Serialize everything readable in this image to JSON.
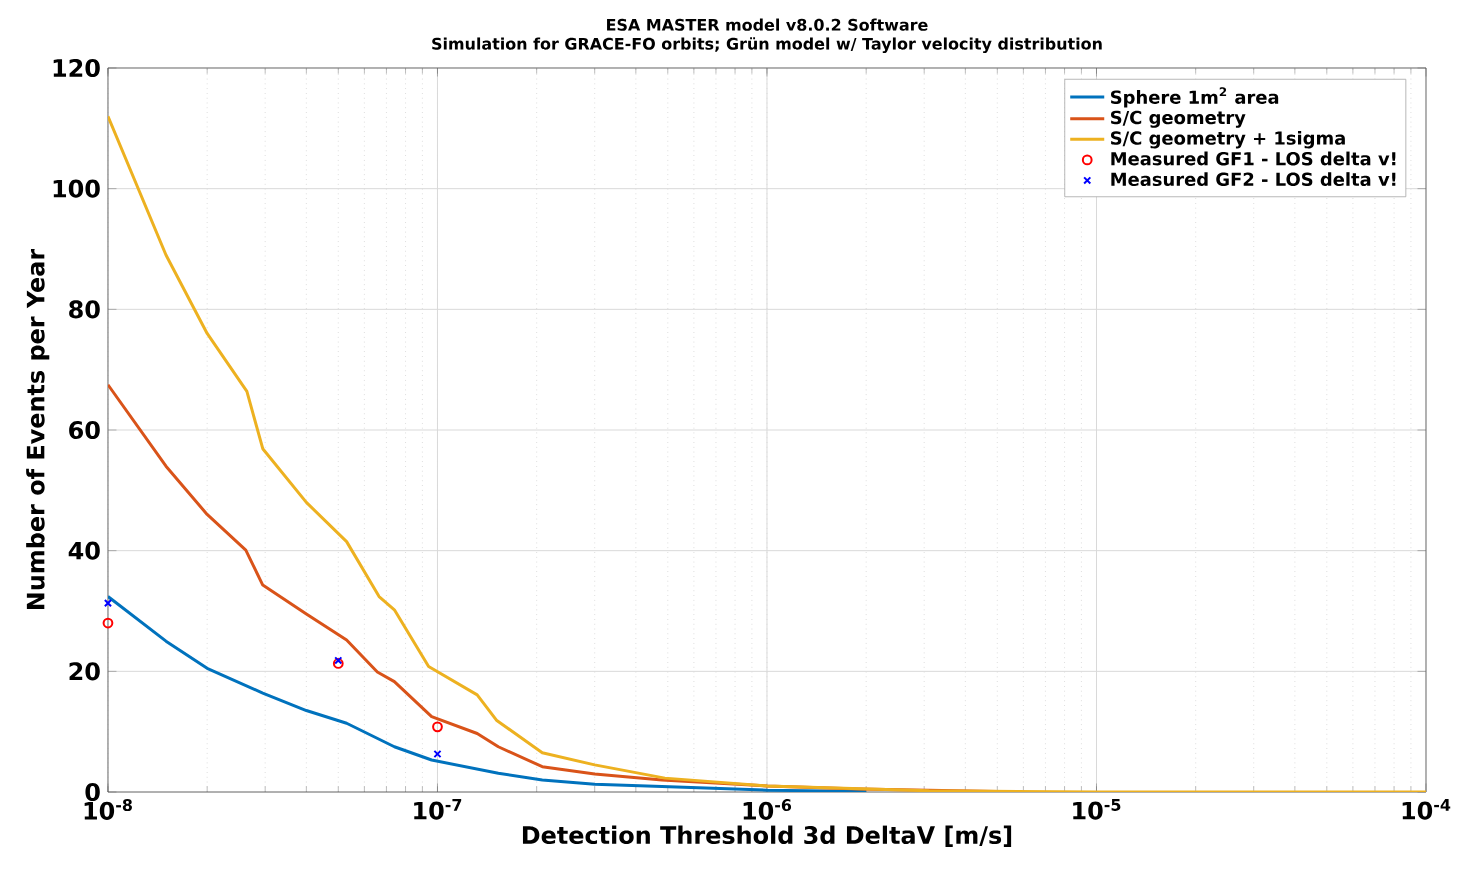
{
  "chart_data": {
    "type": "line",
    "title": "ESA MASTER model v8.0.2 Software",
    "subtitle": "Simulation for GRACE-FO orbits; Grün model w/ Taylor velocity distribution",
    "xlabel": "Detection Threshold 3d DeltaV [m/s]",
    "ylabel": "Number of Events per Year",
    "log": "x",
    "grid": true,
    "legend": "top right",
    "xlim": [
      1e-08,
      0.0001
    ],
    "ylim": [
      0,
      120
    ],
    "xticks": [
      {
        "value": 1e-08,
        "label": "10$^{-8}$"
      },
      {
        "value": 1e-07,
        "label": "10$^{-7}$"
      },
      {
        "value": 1e-06,
        "label": "10$^{-6}$"
      },
      {
        "value": 1e-05,
        "label": "10$^{-5}$"
      },
      {
        "value": 0.0001,
        "label": "10$^{-4}$"
      }
    ],
    "yticks": [
      0,
      20,
      40,
      60,
      80,
      100,
      120
    ],
    "series": [
      {
        "name": "Sphere 1m$^{2}$ area",
        "color": "#0072bd",
        "marker": "none",
        "x": [
          1e-08,
          1.5e-08,
          2e-08,
          2.95e-08,
          4e-08,
          5.3e-08,
          7.4e-08,
          9.6e-08,
          1.53e-07,
          2.08e-07,
          3e-07,
          4.8e-07,
          1e-06,
          2e-06
        ],
        "values": [
          32.4,
          25,
          20.5,
          16.4,
          13.5,
          11.4,
          7.5,
          5.3,
          3.1,
          2.0,
          1.3,
          0.9,
          0.3,
          0.1
        ]
      },
      {
        "name": "S/C geometry",
        "color": "#d95319",
        "marker": "none",
        "x": [
          1e-08,
          1.5e-08,
          2e-08,
          2.62e-08,
          2.95e-08,
          4e-08,
          5.3e-08,
          6.57e-08,
          7.4e-08,
          9.6e-08,
          1.32e-07,
          1.53e-07,
          2.08e-07,
          3e-07,
          4.8e-07,
          1e-06,
          1.9e-06,
          5e-06
        ],
        "values": [
          67.5,
          54,
          46,
          40.1,
          34.3,
          29.5,
          25.2,
          19.9,
          18.3,
          12.5,
          9.7,
          7.5,
          4.2,
          3,
          2.0,
          1.0,
          0.5,
          0.1
        ]
      },
      {
        "name": "S/C geometry + 1sigma",
        "color": "#edb120",
        "marker": "none",
        "x": [
          1e-08,
          1.5e-08,
          2e-08,
          2.64e-08,
          2.95e-08,
          4e-08,
          5.3e-08,
          6.65e-08,
          7.4e-08,
          9.4e-08,
          1.32e-07,
          1.51e-07,
          2.08e-07,
          3e-07,
          4.9e-07,
          1e-06,
          3.1e-06,
          1e-05,
          0.0001
        ],
        "values": [
          112,
          89,
          76,
          66.4,
          56.9,
          48,
          41.5,
          32.4,
          30.2,
          20.8,
          16.1,
          11.9,
          6.5,
          4.5,
          2.3,
          1.0,
          0.2,
          0,
          0
        ]
      },
      {
        "name": "Measured GF1 - LOS delta v!",
        "color": "#ff0000",
        "type": "scatter",
        "marker": "circle",
        "x": [
          1e-08,
          5e-08,
          1e-07
        ],
        "values": [
          28.0,
          21.3,
          10.8
        ]
      },
      {
        "name": "Measured GF2 - LOS delta v!",
        "color": "#0000ff",
        "type": "scatter",
        "marker": "cross",
        "x": [
          1e-08,
          5e-08,
          1e-07
        ],
        "values": [
          31.3,
          21.8,
          6.3
        ]
      }
    ]
  }
}
